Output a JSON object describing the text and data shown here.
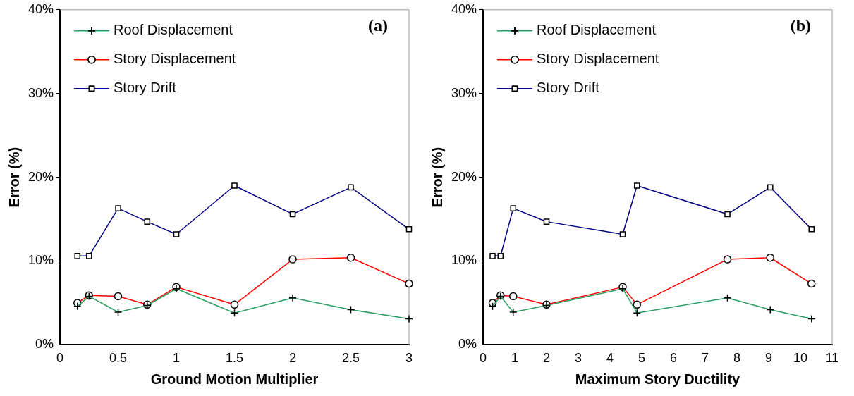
{
  "chart_data": [
    {
      "type": "line",
      "xlabel": "Ground Motion Multiplier",
      "ylabel": "Error (%)",
      "annotations": [
        "(a)"
      ],
      "xlim": [
        0,
        3
      ],
      "xticks": [
        0,
        0.5,
        1,
        1.5,
        2,
        2.5,
        3
      ],
      "ylim": [
        0,
        40
      ],
      "yticks": [
        {
          "value": 0,
          "label": "0%"
        },
        {
          "value": 10,
          "label": "10%"
        },
        {
          "value": 20,
          "label": "20%"
        },
        {
          "value": 30,
          "label": "30%"
        },
        {
          "value": 40,
          "label": "40%"
        }
      ],
      "x": [
        0.15,
        0.25,
        0.5,
        0.75,
        1,
        1.5,
        2,
        2.5,
        3
      ],
      "grid": false,
      "legend": "top left",
      "series": [
        {
          "name": "Roof Displacement",
          "color": "#2e9e63",
          "marker": "cross",
          "values": [
            4.6,
            5.8,
            3.9,
            4.7,
            6.7,
            3.8,
            5.6,
            4.2,
            3.1
          ]
        },
        {
          "name": "Story Displacement",
          "color": "#ff0000",
          "marker": "circle",
          "values": [
            5.0,
            5.9,
            5.8,
            4.8,
            6.9,
            4.8,
            10.2,
            10.4,
            7.3
          ]
        },
        {
          "name": "Story Drift",
          "color": "#000080",
          "marker": "square",
          "values": [
            10.6,
            10.6,
            16.3,
            14.7,
            13.2,
            19.0,
            15.6,
            18.8,
            13.8
          ]
        }
      ]
    },
    {
      "type": "line",
      "xlabel": "Maximum Story Ductility",
      "ylabel": "Error (%)",
      "annotations": [
        "(b)"
      ],
      "xlim": [
        0,
        11
      ],
      "xticks": [
        0,
        1,
        2,
        3,
        4,
        5,
        6,
        7,
        8,
        9,
        10,
        11
      ],
      "ylim": [
        0,
        40
      ],
      "yticks": [
        {
          "value": 0,
          "label": "0%"
        },
        {
          "value": 10,
          "label": "10%"
        },
        {
          "value": 20,
          "label": "20%"
        },
        {
          "value": 30,
          "label": "30%"
        },
        {
          "value": 40,
          "label": "40%"
        }
      ],
      "x": [
        0.3,
        0.55,
        0.95,
        2.0,
        4.4,
        4.85,
        7.7,
        9.05,
        10.35
      ],
      "grid": false,
      "legend": "top left",
      "series": [
        {
          "name": "Roof Displacement",
          "color": "#2e9e63",
          "marker": "cross",
          "values": [
            4.6,
            5.8,
            3.9,
            4.7,
            6.7,
            3.8,
            5.6,
            4.2,
            3.1
          ]
        },
        {
          "name": "Story Displacement",
          "color": "#ff0000",
          "marker": "circle",
          "values": [
            5.0,
            5.9,
            5.8,
            4.8,
            6.9,
            4.8,
            10.2,
            10.4,
            7.3
          ]
        },
        {
          "name": "Story Drift",
          "color": "#000080",
          "marker": "square",
          "values": [
            10.6,
            10.6,
            16.3,
            14.7,
            13.2,
            19.0,
            15.6,
            18.8,
            13.8
          ]
        }
      ]
    }
  ]
}
